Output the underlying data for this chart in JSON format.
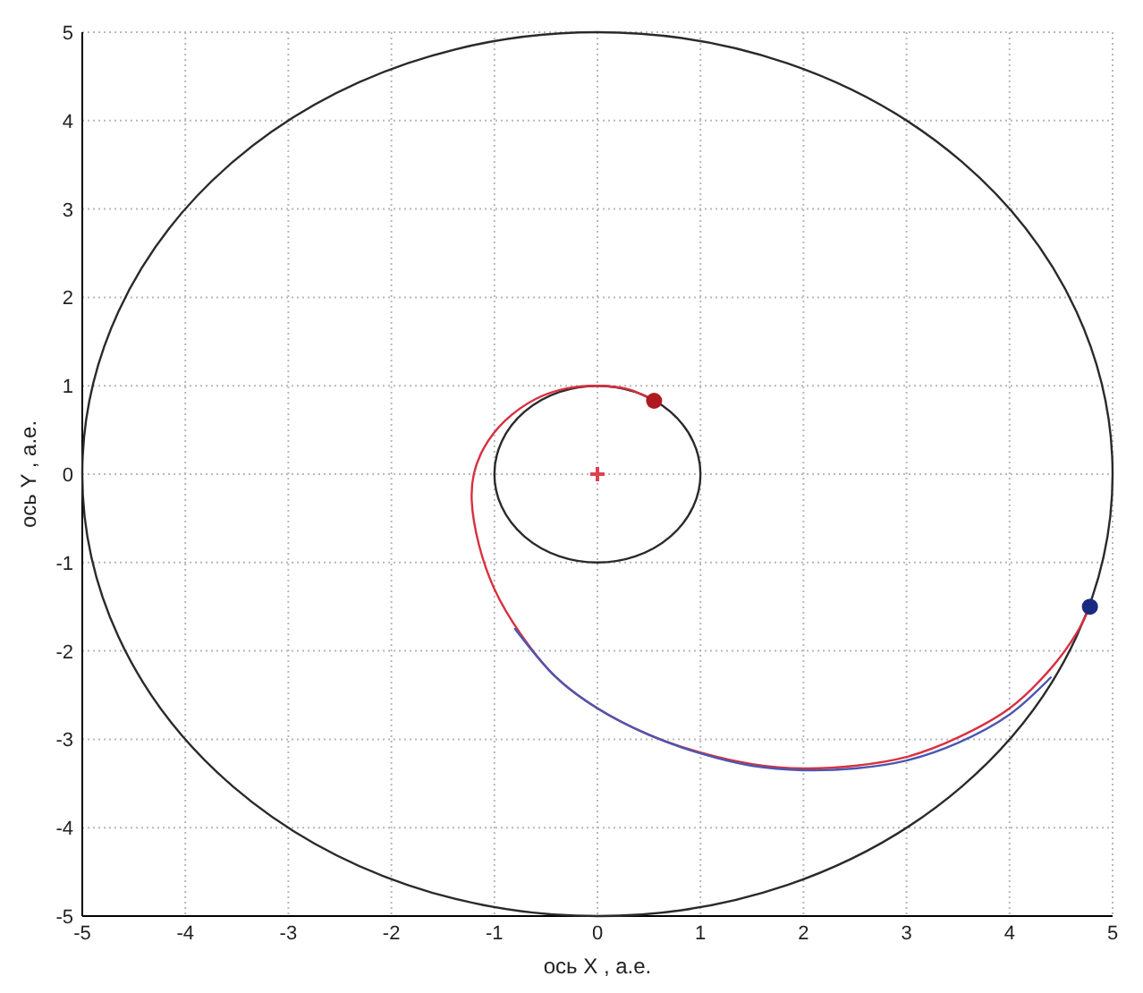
{
  "chart_data": {
    "type": "line",
    "xlabel": "ось X , а.е.",
    "ylabel": "ось Y , а.е.",
    "xlim": [
      -5,
      5
    ],
    "ylim": [
      -5,
      5
    ],
    "xticks": [
      -5,
      -4,
      -3,
      -2,
      -1,
      0,
      1,
      2,
      3,
      4,
      5
    ],
    "yticks": [
      -5,
      -4,
      -3,
      -2,
      -1,
      0,
      1,
      2,
      3,
      4,
      5
    ],
    "grid": true,
    "line_style": "solid",
    "series": [
      {
        "color": "#d83040",
        "x": [
          0.55,
          0.3,
          0,
          -0.3,
          -0.6,
          -0.9,
          -1.1,
          -1.2,
          -1.22,
          -1.15,
          -1,
          -0.75,
          -0.4,
          0,
          0.5,
          1,
          1.5,
          2,
          2.5,
          3,
          3.5,
          4,
          4.4,
          4.65,
          4.78
        ],
        "values": [
          0.83,
          0.96,
          1,
          0.97,
          0.85,
          0.6,
          0.3,
          0,
          -0.3,
          -0.8,
          -1.3,
          -1.8,
          -2.3,
          -2.65,
          -2.95,
          -3.15,
          -3.28,
          -3.33,
          -3.3,
          -3.2,
          -2.98,
          -2.65,
          -2.2,
          -1.8,
          -1.5
        ]
      },
      {
        "color": "#4a58b0",
        "x": [
          -0.8,
          -0.4,
          0,
          0.5,
          1,
          1.5,
          2,
          2.5,
          3,
          3.5,
          4,
          4.4
        ],
        "values": [
          -1.75,
          -2.3,
          -2.65,
          -2.95,
          -3.16,
          -3.3,
          -3.35,
          -3.33,
          -3.24,
          -3.04,
          -2.72,
          -2.3
        ]
      },
      {
        "type": "scatter",
        "marker": "circle",
        "color": "#b01820",
        "x": [
          0.55
        ],
        "values": [
          0.83
        ]
      },
      {
        "type": "scatter",
        "marker": "circle",
        "color": "#1a2a80",
        "x": [
          4.78
        ],
        "values": [
          -1.5
        ]
      },
      {
        "type": "scatter",
        "marker": "cross",
        "color": "#e04050",
        "x": [
          0
        ],
        "values": [
          0
        ]
      }
    ]
  }
}
